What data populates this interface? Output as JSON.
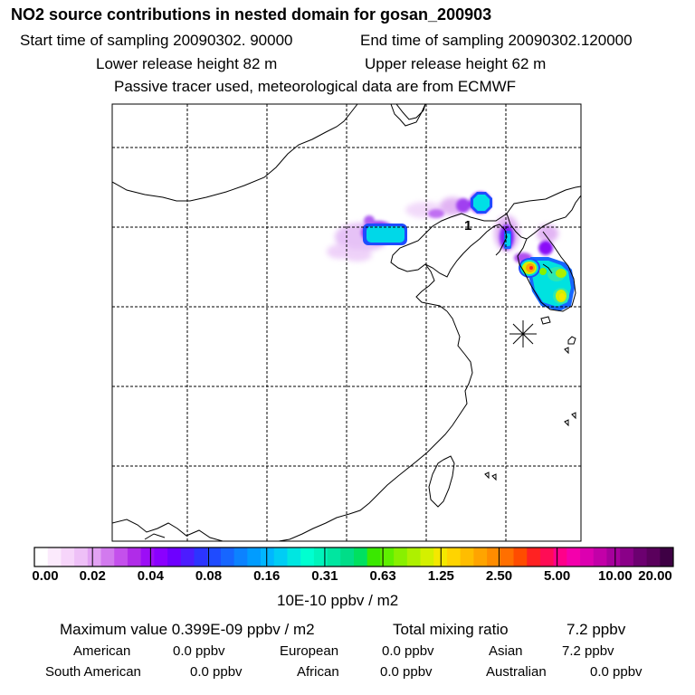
{
  "header": {
    "title": "NO2 source contributions in nested domain for gosan_200903",
    "start_time": "Start time of sampling 20090302. 90000",
    "end_time": "End time of sampling 20090302.120000",
    "lower_height": "Lower release height   82 m",
    "upper_height": "Upper release height   62 m",
    "tracer_note": "Passive tracer used, meteorological data are from ECMWF"
  },
  "map": {
    "receptor_marker": "1",
    "receptor_icon": "asterisk-icon"
  },
  "colorbar": {
    "ticks": [
      "0.00",
      "0.02",
      "0.04",
      "0.08",
      "0.16",
      "0.31",
      "0.63",
      "1.25",
      "2.50",
      "5.00",
      "10.00",
      "20.00"
    ],
    "unit": "10E-10 ppbv / m2",
    "colors": [
      "#ffffff",
      "#fbeafc",
      "#f6d5fa",
      "#eec0f7",
      "#e2a2f3",
      "#d27aee",
      "#c450ec",
      "#b02ce8",
      "#9c0ef6",
      "#8a00ff",
      "#6e00ff",
      "#4c1cff",
      "#2c34ff",
      "#1f4bff",
      "#1766ff",
      "#0c82ff",
      "#019cff",
      "#01b6ff",
      "#00cdf4",
      "#00e6e1",
      "#00ffd0",
      "#00f4bb",
      "#00e6a0",
      "#00dd88",
      "#00e060",
      "#3ae800",
      "#5ff000",
      "#88f000",
      "#aef000",
      "#d4f000",
      "#f4e800",
      "#ffd400",
      "#ffbd00",
      "#ffa400",
      "#ff8c00",
      "#ff6f00",
      "#ff4c00",
      "#ff2222",
      "#ff0c55",
      "#ff008a",
      "#f400ac",
      "#dc00b0",
      "#c200a8",
      "#a6009c",
      "#8a0088",
      "#6c0070",
      "#5a005c",
      "#3e0044"
    ]
  },
  "summary": {
    "max_value": "Maximum value  0.399E-09 ppbv / m2",
    "total_label": "Total mixing ratio",
    "total_value": "7.2 ppbv",
    "regions": [
      {
        "name": "American",
        "value": "0.0 ppbv"
      },
      {
        "name": "European",
        "value": "0.0 ppbv"
      },
      {
        "name": "Asian",
        "value": "7.2 ppbv"
      },
      {
        "name": "South American",
        "value": "0.0 ppbv"
      },
      {
        "name": "African",
        "value": "0.0 ppbv"
      },
      {
        "name": "Australian",
        "value": "0.0 ppbv"
      }
    ]
  }
}
